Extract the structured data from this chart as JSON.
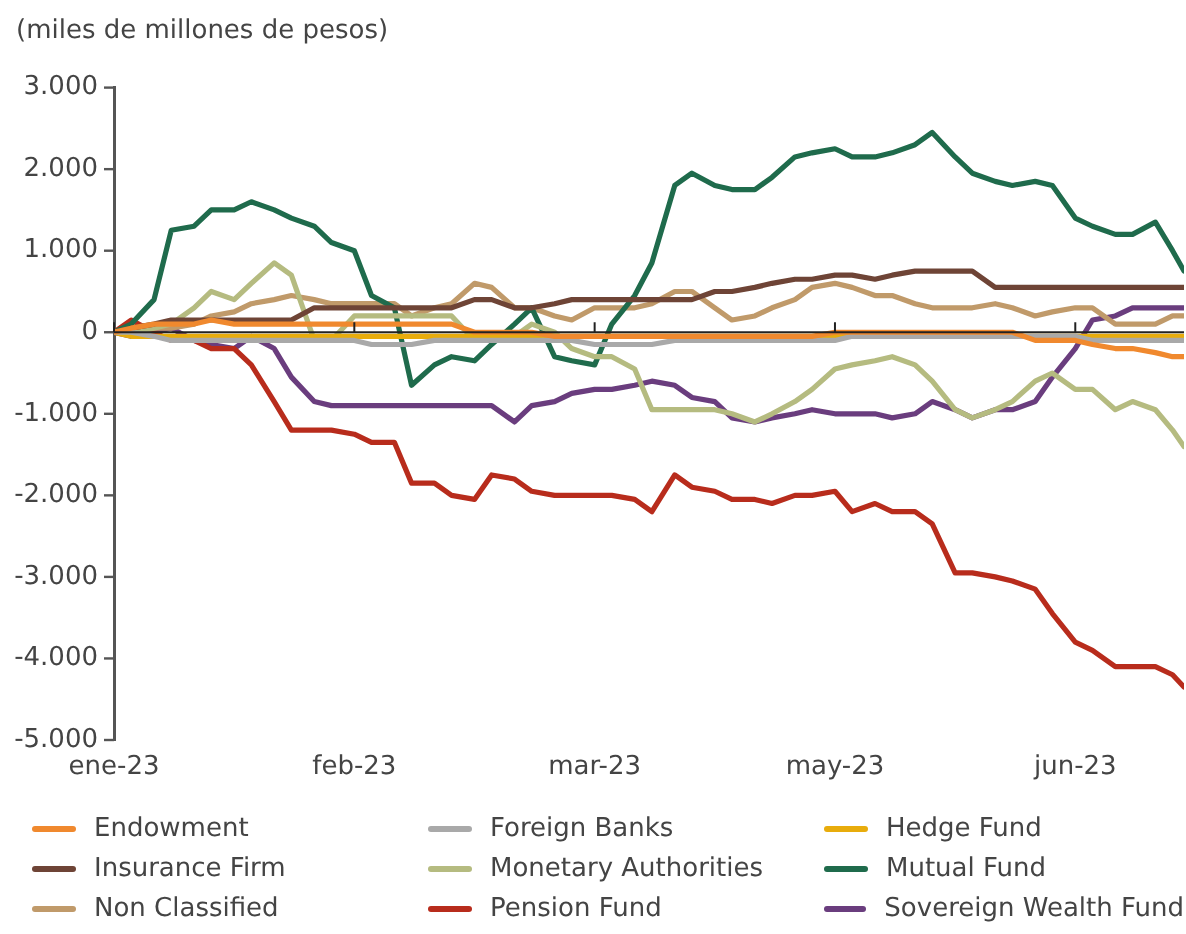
{
  "chart_data": {
    "type": "line",
    "ylabel": "(miles de millones de pesos)",
    "x": [
      "2023-01-02",
      "2023-01-05",
      "2023-01-09",
      "2023-01-12",
      "2023-01-16",
      "2023-01-19",
      "2023-01-23",
      "2023-01-26",
      "2023-01-30",
      "2023-02-02",
      "2023-02-06",
      "2023-02-09",
      "2023-02-13",
      "2023-02-16",
      "2023-02-20",
      "2023-02-23",
      "2023-02-27",
      "2023-03-02",
      "2023-03-06",
      "2023-03-09",
      "2023-03-13",
      "2023-03-16",
      "2023-03-20",
      "2023-03-23",
      "2023-03-27",
      "2023-03-30",
      "2023-04-03",
      "2023-04-06",
      "2023-04-10",
      "2023-04-13",
      "2023-04-17",
      "2023-04-20",
      "2023-04-24",
      "2023-04-27",
      "2023-05-01",
      "2023-05-04",
      "2023-05-08",
      "2023-05-11",
      "2023-05-15",
      "2023-05-18",
      "2023-05-22",
      "2023-05-25",
      "2023-05-29",
      "2023-06-01",
      "2023-06-05",
      "2023-06-08",
      "2023-06-12",
      "2023-06-15",
      "2023-06-19",
      "2023-06-22",
      "2023-06-26",
      "2023-06-29",
      "2023-07-03",
      "2023-07-06",
      "2023-07-08"
    ],
    "xlim": [
      "2023-01-02",
      "2023-07-08"
    ],
    "xticks": [
      {
        "value": "2023-01-02",
        "label": "ene-23"
      },
      {
        "value": "2023-02-13",
        "label": "feb-23"
      },
      {
        "value": "2023-03-27",
        "label": "mar-23"
      },
      {
        "value": "2023-05-08",
        "label": "may-23"
      },
      {
        "value": "2023-06-19",
        "label": "jun-23"
      }
    ],
    "ylim": [
      -5000,
      3000
    ],
    "yticks": [
      {
        "value": -5000,
        "label": "-5.000"
      },
      {
        "value": -4000,
        "label": "-4.000"
      },
      {
        "value": -3000,
        "label": "-3.000"
      },
      {
        "value": -2000,
        "label": "-2.000"
      },
      {
        "value": -1000,
        "label": "-1.000"
      },
      0,
      {
        "value": 1000,
        "label": "1.000"
      },
      {
        "value": 2000,
        "label": "2.000"
      },
      {
        "value": 3000,
        "label": "3.000"
      }
    ],
    "grid": false,
    "legend": "bottom",
    "marker": "none",
    "line_style": "solid",
    "ref_lines": [
      {
        "axis": "y",
        "value": 0,
        "color": "#222222"
      }
    ],
    "series": [
      {
        "name": "Endowment",
        "color": "#f0892e",
        "values": [
          0,
          50,
          100,
          100,
          100,
          150,
          100,
          100,
          100,
          100,
          100,
          100,
          100,
          100,
          100,
          100,
          100,
          100,
          0,
          0,
          0,
          0,
          -50,
          -50,
          -50,
          -50,
          -50,
          -50,
          -50,
          -50,
          -50,
          -50,
          -50,
          -50,
          -50,
          -50,
          0,
          0,
          0,
          0,
          0,
          0,
          0,
          0,
          0,
          0,
          -100,
          -100,
          -100,
          -150,
          -200,
          -200,
          -250,
          -300,
          -300
        ]
      },
      {
        "name": "Foreign Banks",
        "color": "#a9a9a9",
        "values": [
          0,
          0,
          -50,
          -100,
          -100,
          -100,
          -100,
          -100,
          -100,
          -100,
          -100,
          -100,
          -100,
          -150,
          -150,
          -150,
          -100,
          -100,
          -100,
          -100,
          -100,
          -100,
          -100,
          -100,
          -150,
          -150,
          -150,
          -150,
          -100,
          -100,
          -100,
          -100,
          -100,
          -100,
          -100,
          -100,
          -100,
          -50,
          -50,
          -50,
          -50,
          -50,
          -50,
          -50,
          -50,
          -50,
          -50,
          -50,
          -50,
          -100,
          -100,
          -100,
          -100,
          -100,
          -100
        ]
      },
      {
        "name": "Hedge Fund",
        "color": "#e8ac0c",
        "values": [
          0,
          -50,
          -50,
          -50,
          -50,
          -50,
          -50,
          -50,
          -50,
          -50,
          -50,
          -50,
          -50,
          -50,
          -50,
          -50,
          -50,
          -50,
          -50,
          -50,
          -50,
          -50,
          -50,
          -50,
          -50,
          -50,
          -50,
          -50,
          -50,
          -50,
          -50,
          -50,
          -50,
          -50,
          -50,
          -50,
          -50,
          -50,
          -50,
          -50,
          -50,
          -50,
          -50,
          -50,
          -50,
          -50,
          -50,
          -50,
          -50,
          -50,
          -50,
          -50,
          -50,
          -50,
          -50
        ]
      },
      {
        "name": "Insurance Firm",
        "color": "#6e4436",
        "values": [
          0,
          50,
          100,
          150,
          150,
          150,
          150,
          150,
          150,
          150,
          300,
          300,
          300,
          300,
          300,
          300,
          300,
          300,
          400,
          400,
          300,
          300,
          350,
          400,
          400,
          400,
          400,
          400,
          400,
          400,
          500,
          500,
          550,
          600,
          650,
          650,
          700,
          700,
          650,
          700,
          750,
          750,
          750,
          750,
          550,
          550,
          550,
          550,
          550,
          550,
          550,
          550,
          550,
          550,
          550
        ]
      },
      {
        "name": "Monetary Authorities",
        "color": "#b5bb80",
        "values": [
          0,
          0,
          50,
          100,
          300,
          500,
          400,
          600,
          850,
          700,
          -100,
          -100,
          200,
          200,
          200,
          200,
          200,
          200,
          -100,
          -100,
          -50,
          100,
          0,
          -200,
          -300,
          -300,
          -450,
          -950,
          -950,
          -950,
          -950,
          -1000,
          -1100,
          -1000,
          -850,
          -700,
          -450,
          -400,
          -350,
          -300,
          -400,
          -600,
          -950,
          -1050,
          -950,
          -850,
          -600,
          -500,
          -700,
          -700,
          -950,
          -850,
          -950,
          -1200,
          -1400
        ]
      },
      {
        "name": "Mutual Fund",
        "color": "#1f6b4c",
        "values": [
          0,
          100,
          400,
          1250,
          1300,
          1500,
          1500,
          1600,
          1500,
          1400,
          1300,
          1100,
          1000,
          450,
          300,
          -650,
          -400,
          -300,
          -350,
          -150,
          100,
          300,
          -300,
          -350,
          -400,
          100,
          450,
          850,
          1800,
          1950,
          1800,
          1750,
          1750,
          1900,
          2150,
          2200,
          2250,
          2150,
          2150,
          2200,
          2300,
          2450,
          2150,
          1950,
          1850,
          1800,
          1850,
          1800,
          1400,
          1300,
          1200,
          1200,
          1350,
          1000,
          750
        ]
      },
      {
        "name": "Non Classified",
        "color": "#c09a6a",
        "values": [
          0,
          0,
          50,
          50,
          100,
          200,
          250,
          350,
          400,
          450,
          400,
          350,
          350,
          350,
          350,
          200,
          300,
          350,
          600,
          550,
          300,
          300,
          200,
          150,
          300,
          300,
          300,
          350,
          500,
          500,
          300,
          150,
          200,
          300,
          400,
          550,
          600,
          550,
          450,
          450,
          350,
          300,
          300,
          300,
          350,
          300,
          200,
          250,
          300,
          300,
          100,
          100,
          100,
          200,
          200
        ]
      },
      {
        "name": "Pension Fund",
        "color": "#b82c1c",
        "values": [
          0,
          150,
          0,
          -100,
          -100,
          -200,
          -200,
          -400,
          -850,
          -1200,
          -1200,
          -1200,
          -1250,
          -1350,
          -1350,
          -1850,
          -1850,
          -2000,
          -2050,
          -1750,
          -1800,
          -1950,
          -2000,
          -2000,
          -2000,
          -2000,
          -2050,
          -2200,
          -1750,
          -1900,
          -1950,
          -2050,
          -2050,
          -2100,
          -2000,
          -2000,
          -1950,
          -2200,
          -2100,
          -2200,
          -2200,
          -2350,
          -2950,
          -2950,
          -3000,
          -3050,
          -3150,
          -3450,
          -3800,
          -3900,
          -4100,
          -4100,
          -4100,
          -4200,
          -4350
        ]
      },
      {
        "name": "Sovereign Wealth Fund",
        "color": "#6a3d7e",
        "values": [
          0,
          -50,
          0,
          50,
          -100,
          -150,
          -200,
          -50,
          -200,
          -550,
          -850,
          -900,
          -900,
          -900,
          -900,
          -900,
          -900,
          -900,
          -900,
          -900,
          -1100,
          -900,
          -850,
          -750,
          -700,
          -700,
          -650,
          -600,
          -650,
          -800,
          -850,
          -1050,
          -1100,
          -1050,
          -1000,
          -950,
          -1000,
          -1000,
          -1000,
          -1050,
          -1000,
          -850,
          -950,
          -1050,
          -950,
          -950,
          -850,
          -550,
          -200,
          150,
          200,
          300,
          300,
          300,
          300
        ]
      }
    ]
  }
}
